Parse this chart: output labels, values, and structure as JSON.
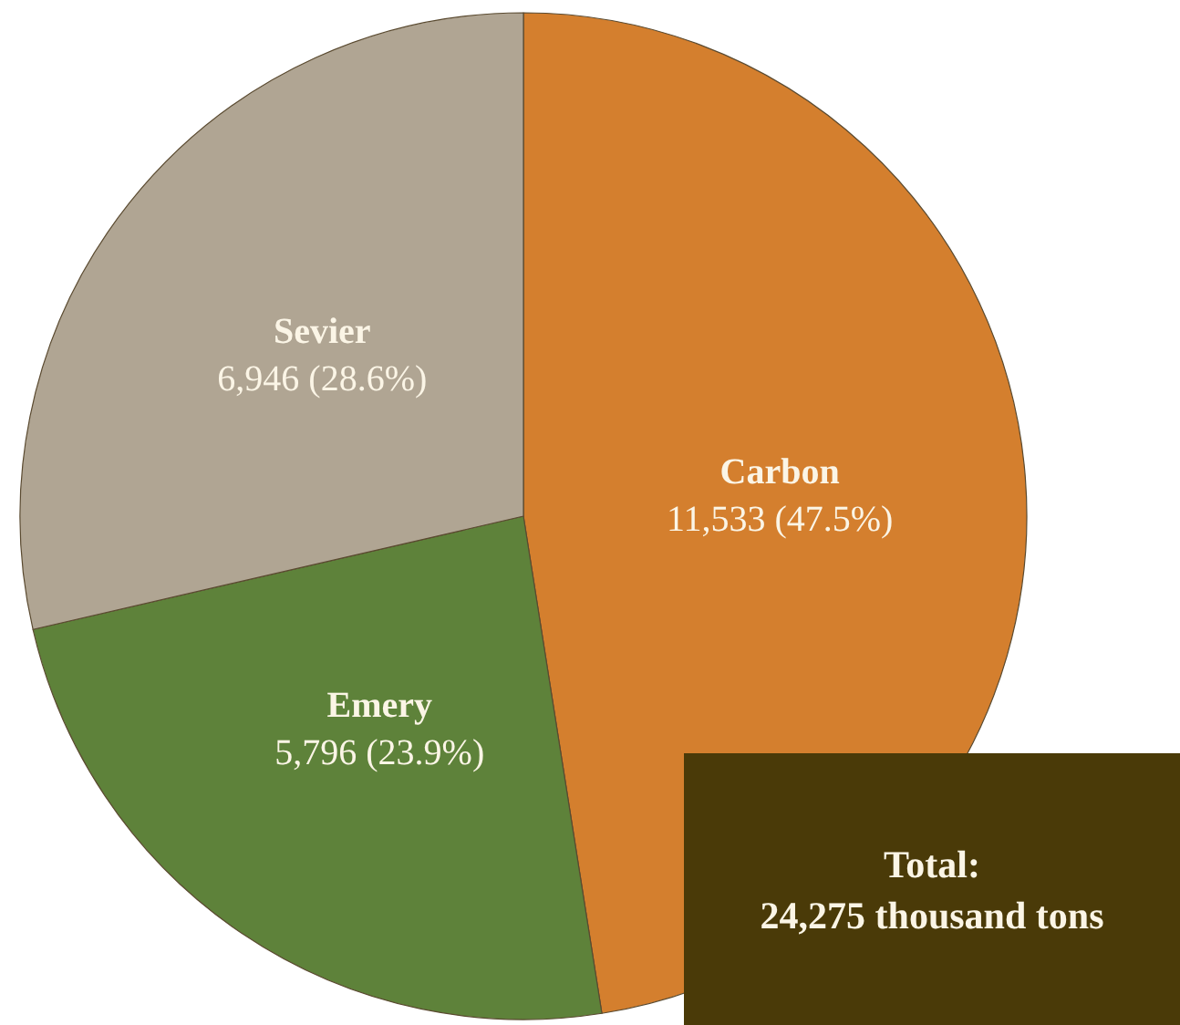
{
  "chart_data": {
    "type": "pie",
    "categories": [
      "Carbon",
      "Emery",
      "Sevier"
    ],
    "values": [
      11533,
      5796,
      6946
    ],
    "value_labels": [
      "11,533 (47.5%)",
      "5,796 (23.9%)",
      "6,946 (28.6%)"
    ],
    "colors": [
      "#d47f2e",
      "#5e823a",
      "#b0a593"
    ],
    "legend": false,
    "annotations": [
      "Total:\n24,275 thousand tons"
    ]
  }
}
